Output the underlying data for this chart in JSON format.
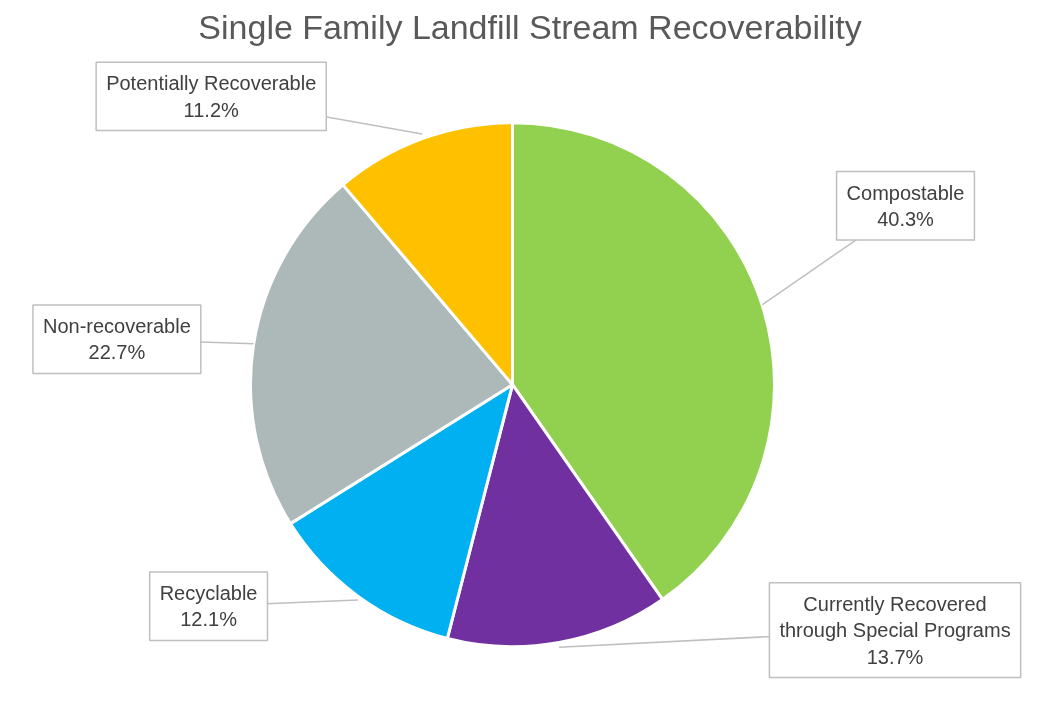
{
  "chart_data": {
    "type": "pie",
    "title": "Single Family Landfill Stream Recoverability",
    "categories": [
      "Compostable",
      "Currently Recovered through Special Programs",
      "Recyclable",
      "Non-recoverable",
      "Potentially Recoverable"
    ],
    "values": [
      40.3,
      13.7,
      12.1,
      22.7,
      11.2
    ],
    "value_labels": [
      "40.3%",
      "13.7%",
      "12.1%",
      "22.7%",
      "11.2%"
    ],
    "colors": [
      "#92d050",
      "#7030a0",
      "#00b0f0",
      "#adb9b9",
      "#ffc000"
    ]
  }
}
